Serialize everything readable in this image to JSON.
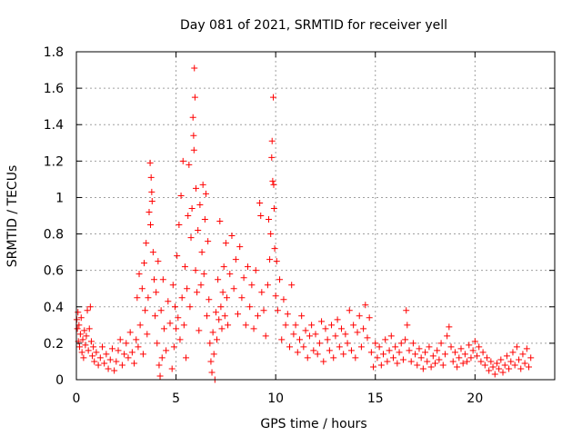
{
  "chart_data": {
    "type": "scatter",
    "title": "Day 081 of 2021, SRMTID for receiver yell",
    "xlabel": "GPS time / hours",
    "ylabel": "SRMTID / TECUs",
    "xlim": [
      0,
      24
    ],
    "ylim": [
      0,
      1.8
    ],
    "xticks": [
      0,
      5,
      10,
      15,
      20
    ],
    "yticks": [
      0,
      0.2,
      0.4,
      0.6,
      0.8,
      1,
      1.2,
      1.4,
      1.6,
      1.8
    ],
    "xtick_labels": [
      "0",
      "5",
      "10",
      "15",
      "20"
    ],
    "ytick_labels": [
      "0",
      "0.2",
      "0.4",
      "0.6",
      "0.8",
      "1",
      "1.2",
      "1.4",
      "1.6",
      "1.8"
    ],
    "grid": true,
    "marker": "+",
    "color": "#ff0000",
    "series": [
      {
        "name": "SRMTID",
        "points": [
          [
            0.02,
            0.33
          ],
          [
            0.05,
            0.28
          ],
          [
            0.08,
            0.37
          ],
          [
            0.1,
            0.21
          ],
          [
            0.13,
            0.3
          ],
          [
            0.16,
            0.18
          ],
          [
            0.2,
            0.25
          ],
          [
            0.24,
            0.34
          ],
          [
            0.28,
            0.15
          ],
          [
            0.32,
            0.22
          ],
          [
            0.36,
            0.12
          ],
          [
            0.4,
            0.27
          ],
          [
            0.45,
            0.19
          ],
          [
            0.5,
            0.24
          ],
          [
            0.55,
            0.38
          ],
          [
            0.6,
            0.16
          ],
          [
            0.65,
            0.28
          ],
          [
            0.7,
            0.4
          ],
          [
            0.75,
            0.21
          ],
          [
            0.8,
            0.13
          ],
          [
            0.85,
            0.18
          ],
          [
            0.9,
            0.1
          ],
          [
            1.0,
            0.15
          ],
          [
            1.1,
            0.08
          ],
          [
            1.2,
            0.12
          ],
          [
            1.3,
            0.18
          ],
          [
            1.4,
            0.09
          ],
          [
            1.5,
            0.14
          ],
          [
            1.6,
            0.06
          ],
          [
            1.7,
            0.11
          ],
          [
            1.8,
            0.17
          ],
          [
            1.9,
            0.05
          ],
          [
            2.0,
            0.1
          ],
          [
            2.1,
            0.16
          ],
          [
            2.2,
            0.22
          ],
          [
            2.3,
            0.08
          ],
          [
            2.4,
            0.14
          ],
          [
            2.5,
            0.2
          ],
          [
            2.6,
            0.12
          ],
          [
            2.7,
            0.26
          ],
          [
            2.8,
            0.15
          ],
          [
            2.9,
            0.09
          ],
          [
            3.0,
            0.22
          ],
          [
            3.05,
            0.45
          ],
          [
            3.1,
            0.18
          ],
          [
            3.15,
            0.58
          ],
          [
            3.2,
            0.3
          ],
          [
            3.3,
            0.5
          ],
          [
            3.35,
            0.14
          ],
          [
            3.4,
            0.64
          ],
          [
            3.45,
            0.38
          ],
          [
            3.5,
            0.75
          ],
          [
            3.55,
            0.25
          ],
          [
            3.6,
            0.45
          ],
          [
            3.65,
            0.92
          ],
          [
            3.7,
            1.19
          ],
          [
            3.72,
            0.85
          ],
          [
            3.75,
            1.11
          ],
          [
            3.78,
            1.03
          ],
          [
            3.8,
            0.98
          ],
          [
            3.85,
            0.7
          ],
          [
            3.9,
            0.55
          ],
          [
            3.95,
            0.35
          ],
          [
            4.0,
            0.48
          ],
          [
            4.05,
            0.2
          ],
          [
            4.1,
            0.65
          ],
          [
            4.15,
            0.08
          ],
          [
            4.2,
            0.02
          ],
          [
            4.25,
            0.38
          ],
          [
            4.3,
            0.12
          ],
          [
            4.35,
            0.55
          ],
          [
            4.4,
            0.28
          ],
          [
            4.5,
            0.16
          ],
          [
            4.6,
            0.43
          ],
          [
            4.7,
            0.31
          ],
          [
            4.8,
            0.06
          ],
          [
            4.85,
            0.52
          ],
          [
            4.9,
            0.18
          ],
          [
            4.95,
            0.4
          ],
          [
            5.0,
            0.28
          ],
          [
            5.05,
            0.68
          ],
          [
            5.1,
            0.34
          ],
          [
            5.15,
            0.85
          ],
          [
            5.2,
            0.22
          ],
          [
            5.25,
            1.01
          ],
          [
            5.3,
            0.45
          ],
          [
            5.35,
            1.2
          ],
          [
            5.4,
            0.3
          ],
          [
            5.45,
            0.62
          ],
          [
            5.5,
            0.12
          ],
          [
            5.55,
            0.5
          ],
          [
            5.6,
            0.9
          ],
          [
            5.65,
            1.18
          ],
          [
            5.7,
            0.4
          ],
          [
            5.75,
            0.78
          ],
          [
            5.8,
            0.94
          ],
          [
            5.85,
            1.44
          ],
          [
            5.88,
            1.34
          ],
          [
            5.9,
            1.26
          ],
          [
            5.92,
            1.71
          ],
          [
            5.95,
            1.55
          ],
          [
            5.98,
            0.6
          ],
          [
            6.0,
            1.05
          ],
          [
            6.05,
            0.48
          ],
          [
            6.1,
            0.82
          ],
          [
            6.15,
            0.27
          ],
          [
            6.2,
            0.96
          ],
          [
            6.25,
            0.52
          ],
          [
            6.3,
            0.7
          ],
          [
            6.35,
            1.07
          ],
          [
            6.4,
            0.58
          ],
          [
            6.45,
            0.88
          ],
          [
            6.5,
            1.02
          ],
          [
            6.55,
            0.35
          ],
          [
            6.6,
            0.76
          ],
          [
            6.65,
            0.44
          ],
          [
            6.7,
            0.2
          ],
          [
            6.75,
            0.1
          ],
          [
            6.8,
            0.04
          ],
          [
            6.85,
            0.26
          ],
          [
            6.9,
            0.14
          ],
          [
            6.95,
            0.0
          ],
          [
            7.0,
            0.37
          ],
          [
            7.05,
            0.22
          ],
          [
            7.1,
            0.55
          ],
          [
            7.15,
            0.33
          ],
          [
            7.2,
            0.87
          ],
          [
            7.25,
            0.4
          ],
          [
            7.3,
            0.28
          ],
          [
            7.35,
            0.48
          ],
          [
            7.4,
            0.62
          ],
          [
            7.45,
            0.35
          ],
          [
            7.5,
            0.75
          ],
          [
            7.55,
            0.45
          ],
          [
            7.6,
            0.3
          ],
          [
            7.7,
            0.58
          ],
          [
            7.8,
            0.79
          ],
          [
            7.9,
            0.5
          ],
          [
            8.0,
            0.66
          ],
          [
            8.1,
            0.36
          ],
          [
            8.2,
            0.73
          ],
          [
            8.3,
            0.45
          ],
          [
            8.4,
            0.56
          ],
          [
            8.5,
            0.3
          ],
          [
            8.6,
            0.62
          ],
          [
            8.7,
            0.4
          ],
          [
            8.8,
            0.52
          ],
          [
            8.9,
            0.28
          ],
          [
            9.0,
            0.6
          ],
          [
            9.1,
            0.35
          ],
          [
            9.2,
            0.97
          ],
          [
            9.25,
            0.9
          ],
          [
            9.3,
            0.48
          ],
          [
            9.4,
            0.38
          ],
          [
            9.5,
            0.24
          ],
          [
            9.6,
            0.52
          ],
          [
            9.65,
            0.88
          ],
          [
            9.7,
            0.66
          ],
          [
            9.75,
            0.8
          ],
          [
            9.8,
            1.22
          ],
          [
            9.82,
            1.31
          ],
          [
            9.85,
            1.09
          ],
          [
            9.88,
            1.55
          ],
          [
            9.9,
            1.07
          ],
          [
            9.92,
            0.94
          ],
          [
            9.95,
            0.72
          ],
          [
            10.0,
            0.46
          ],
          [
            10.05,
            0.65
          ],
          [
            10.1,
            0.38
          ],
          [
            10.2,
            0.55
          ],
          [
            10.3,
            0.22
          ],
          [
            10.4,
            0.44
          ],
          [
            10.5,
            0.3
          ],
          [
            10.6,
            0.36
          ],
          [
            10.7,
            0.18
          ],
          [
            10.8,
            0.52
          ],
          [
            10.9,
            0.25
          ],
          [
            11.0,
            0.3
          ],
          [
            11.1,
            0.15
          ],
          [
            11.2,
            0.22
          ],
          [
            11.3,
            0.35
          ],
          [
            11.4,
            0.18
          ],
          [
            11.5,
            0.27
          ],
          [
            11.6,
            0.12
          ],
          [
            11.7,
            0.24
          ],
          [
            11.8,
            0.3
          ],
          [
            11.9,
            0.16
          ],
          [
            12.0,
            0.25
          ],
          [
            12.1,
            0.14
          ],
          [
            12.2,
            0.2
          ],
          [
            12.3,
            0.32
          ],
          [
            12.4,
            0.1
          ],
          [
            12.5,
            0.28
          ],
          [
            12.6,
            0.22
          ],
          [
            12.7,
            0.16
          ],
          [
            12.8,
            0.3
          ],
          [
            12.9,
            0.12
          ],
          [
            13.0,
            0.24
          ],
          [
            13.1,
            0.33
          ],
          [
            13.2,
            0.18
          ],
          [
            13.3,
            0.28
          ],
          [
            13.4,
            0.14
          ],
          [
            13.5,
            0.25
          ],
          [
            13.6,
            0.2
          ],
          [
            13.7,
            0.38
          ],
          [
            13.8,
            0.16
          ],
          [
            13.9,
            0.3
          ],
          [
            14.0,
            0.12
          ],
          [
            14.1,
            0.26
          ],
          [
            14.2,
            0.35
          ],
          [
            14.3,
            0.18
          ],
          [
            14.4,
            0.28
          ],
          [
            14.5,
            0.41
          ],
          [
            14.6,
            0.23
          ],
          [
            14.7,
            0.34
          ],
          [
            14.8,
            0.15
          ],
          [
            14.9,
            0.07
          ],
          [
            15.0,
            0.2
          ],
          [
            15.1,
            0.12
          ],
          [
            15.2,
            0.18
          ],
          [
            15.3,
            0.08
          ],
          [
            15.4,
            0.14
          ],
          [
            15.5,
            0.22
          ],
          [
            15.6,
            0.1
          ],
          [
            15.7,
            0.16
          ],
          [
            15.8,
            0.24
          ],
          [
            15.9,
            0.12
          ],
          [
            16.0,
            0.18
          ],
          [
            16.1,
            0.09
          ],
          [
            16.2,
            0.15
          ],
          [
            16.3,
            0.2
          ],
          [
            16.4,
            0.11
          ],
          [
            16.5,
            0.22
          ],
          [
            16.55,
            0.38
          ],
          [
            16.6,
            0.3
          ],
          [
            16.7,
            0.16
          ],
          [
            16.8,
            0.1
          ],
          [
            16.9,
            0.2
          ],
          [
            17.0,
            0.14
          ],
          [
            17.1,
            0.08
          ],
          [
            17.2,
            0.17
          ],
          [
            17.3,
            0.12
          ],
          [
            17.4,
            0.06
          ],
          [
            17.5,
            0.15
          ],
          [
            17.6,
            0.1
          ],
          [
            17.7,
            0.18
          ],
          [
            17.8,
            0.07
          ],
          [
            17.9,
            0.13
          ],
          [
            18.0,
            0.09
          ],
          [
            18.1,
            0.16
          ],
          [
            18.2,
            0.11
          ],
          [
            18.3,
            0.2
          ],
          [
            18.4,
            0.08
          ],
          [
            18.5,
            0.14
          ],
          [
            18.6,
            0.24
          ],
          [
            18.7,
            0.29
          ],
          [
            18.8,
            0.18
          ],
          [
            18.9,
            0.1
          ],
          [
            19.0,
            0.15
          ],
          [
            19.1,
            0.07
          ],
          [
            19.2,
            0.12
          ],
          [
            19.3,
            0.17
          ],
          [
            19.4,
            0.09
          ],
          [
            19.5,
            0.14
          ],
          [
            19.6,
            0.1
          ],
          [
            19.7,
            0.19
          ],
          [
            19.8,
            0.12
          ],
          [
            19.9,
            0.16
          ],
          [
            20.0,
            0.21
          ],
          [
            20.1,
            0.13
          ],
          [
            20.2,
            0.18
          ],
          [
            20.3,
            0.1
          ],
          [
            20.4,
            0.15
          ],
          [
            20.5,
            0.08
          ],
          [
            20.6,
            0.12
          ],
          [
            20.7,
            0.05
          ],
          [
            20.8,
            0.1
          ],
          [
            20.9,
            0.07
          ],
          [
            21.0,
            0.03
          ],
          [
            21.1,
            0.09
          ],
          [
            21.2,
            0.06
          ],
          [
            21.3,
            0.11
          ],
          [
            21.4,
            0.04
          ],
          [
            21.5,
            0.08
          ],
          [
            21.6,
            0.13
          ],
          [
            21.7,
            0.06
          ],
          [
            21.8,
            0.1
          ],
          [
            21.9,
            0.15
          ],
          [
            22.0,
            0.08
          ],
          [
            22.1,
            0.18
          ],
          [
            22.2,
            0.11
          ],
          [
            22.3,
            0.06
          ],
          [
            22.4,
            0.14
          ],
          [
            22.5,
            0.09
          ],
          [
            22.6,
            0.17
          ],
          [
            22.7,
            0.07
          ],
          [
            22.8,
            0.12
          ]
        ]
      }
    ]
  }
}
